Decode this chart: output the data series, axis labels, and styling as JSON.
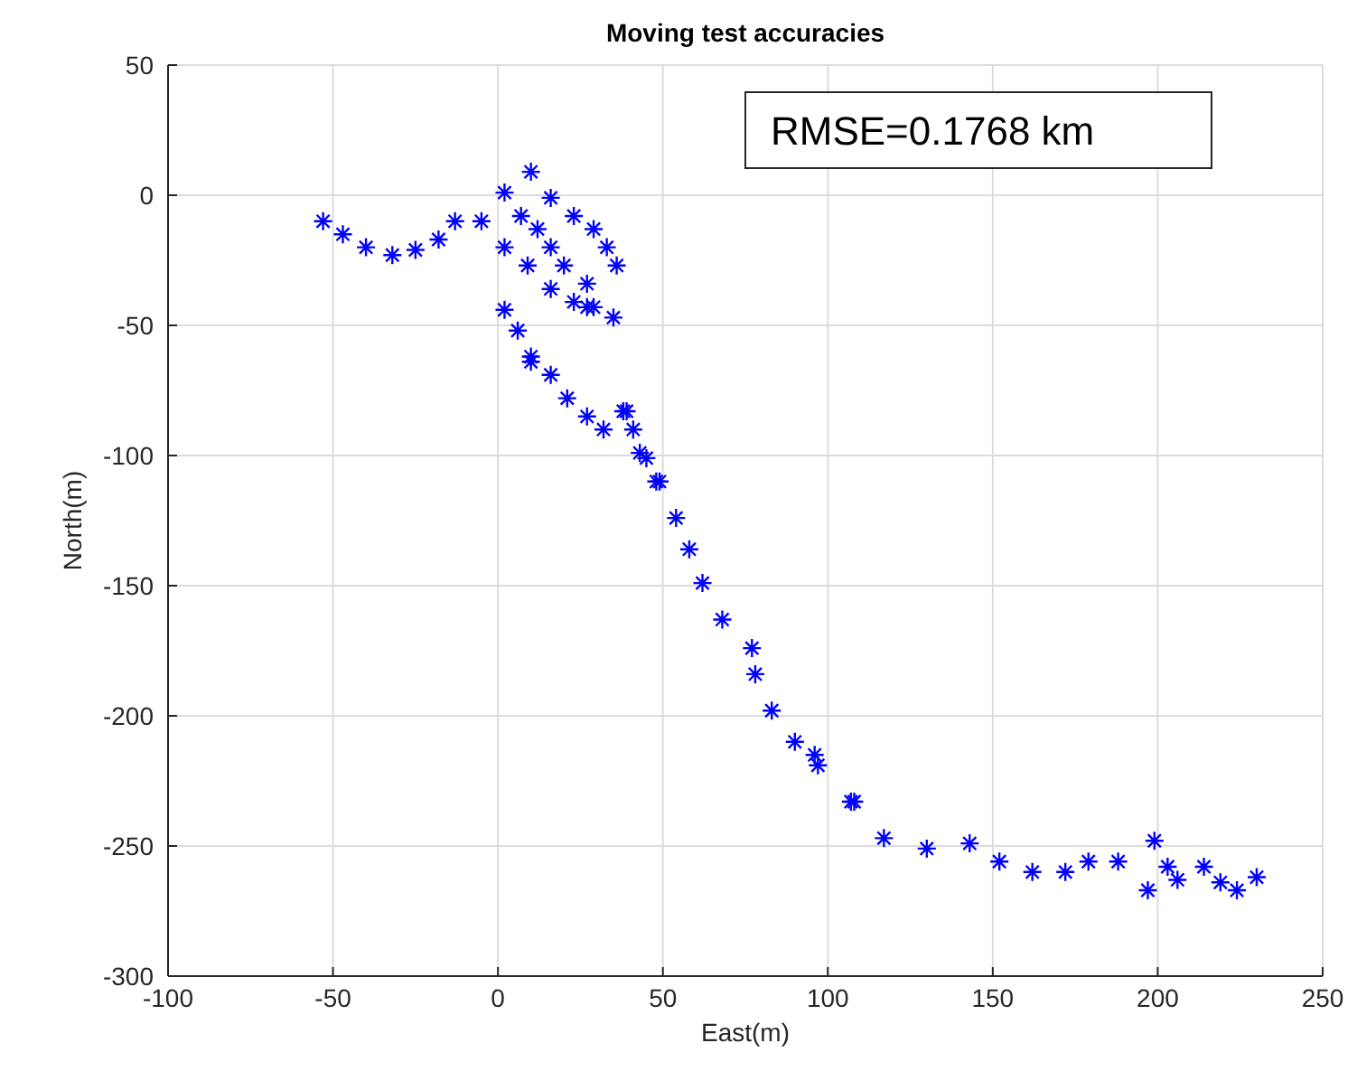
{
  "chart_data": {
    "type": "scatter",
    "title": "Moving test accuracies",
    "xlabel": "East(m)",
    "ylabel": "North(m)",
    "xlim": [
      -100,
      250
    ],
    "xticks": [
      -100,
      -50,
      0,
      50,
      100,
      150,
      200,
      250
    ],
    "ylim": [
      -300,
      50
    ],
    "yticks": [
      -300,
      -250,
      -200,
      -150,
      -100,
      -50,
      0,
      50
    ],
    "grid": true,
    "marker": "cross",
    "annotations": [
      "RMSE=0.1768 km"
    ],
    "series": [
      {
        "color": "#0000ff",
        "x": [
          -53,
          -47,
          -40,
          -32,
          -25,
          -18,
          -13,
          -5,
          2,
          9,
          16,
          23,
          29,
          10,
          2,
          7,
          16,
          23,
          29,
          33,
          36,
          35,
          20,
          16,
          12,
          27,
          27,
          2,
          6,
          10,
          16,
          21,
          27,
          32,
          38,
          41,
          45,
          49,
          10,
          39,
          43,
          48,
          54,
          58,
          62,
          68,
          77,
          78,
          83,
          90,
          97,
          108,
          96,
          107,
          117,
          130,
          143,
          152,
          162,
          172,
          179,
          188,
          199,
          203,
          197,
          206,
          214,
          219,
          224,
          230
        ],
        "values": [
          -10,
          -15,
          -20,
          -23,
          -21,
          -17,
          -10,
          -10,
          -20,
          -27,
          -36,
          -41,
          -43,
          9,
          1,
          -8,
          -1,
          -8,
          -13,
          -20,
          -27,
          -47,
          -27,
          -20,
          -13,
          -34,
          -43,
          -44,
          -52,
          -62,
          -69,
          -78,
          -85,
          -90,
          -83,
          -90,
          -101,
          -110,
          -64,
          -83,
          -99,
          -110,
          -124,
          -136,
          -149,
          -163,
          -174,
          -184,
          -198,
          -210,
          -219,
          -233,
          -215,
          -233,
          -247,
          -251,
          -249,
          -256,
          -260,
          -260,
          -256,
          -256,
          -248,
          -258,
          -267,
          -263,
          -258,
          -264,
          -267,
          -262
        ]
      }
    ]
  }
}
